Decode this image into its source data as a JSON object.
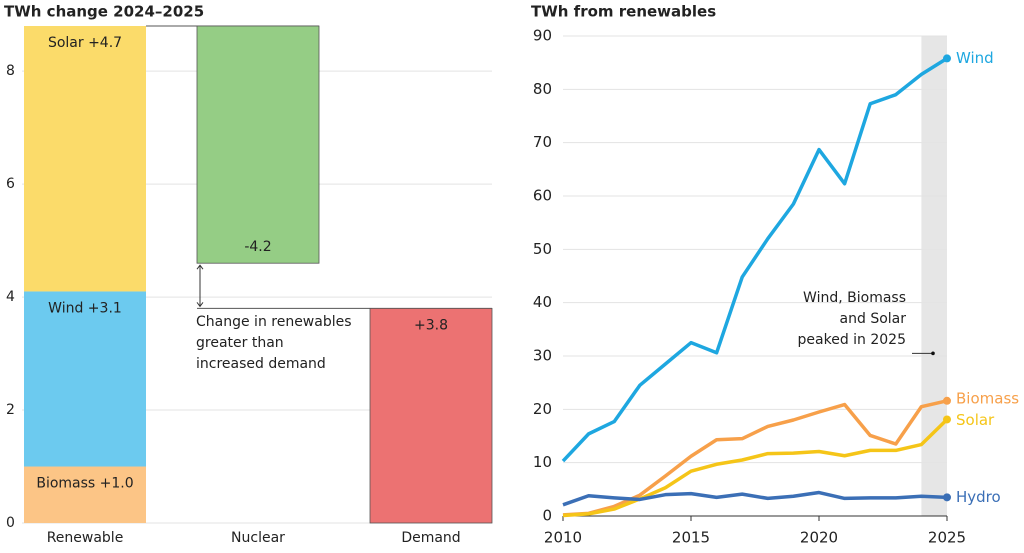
{
  "chart_data": [
    {
      "type": "waterfall",
      "title": "TWh change 2024–2025",
      "categories": [
        "Renewable",
        "Nuclear",
        "Demand"
      ],
      "ylim": [
        0,
        8.8
      ],
      "yticks": [
        0,
        2,
        4,
        6,
        8
      ],
      "grid": true,
      "segments": [
        {
          "label": "Biomass +1.0",
          "value": 1.0,
          "color": "#fcc586"
        },
        {
          "label": "Wind +3.1",
          "value": 3.1,
          "color": "#6ccaef"
        },
        {
          "label": "Solar +4.7",
          "value": 4.7,
          "color": "#fbdb6a"
        }
      ],
      "nuclear": {
        "value": -4.2,
        "value_label": "-4.2",
        "color": "#95cd85"
      },
      "demand": {
        "value": 3.8,
        "value_label": "+3.8",
        "color": "#ec7272"
      },
      "annotation": [
        "Change in renewables",
        "greater than",
        "increased demand"
      ]
    },
    {
      "type": "line",
      "title": "TWh from renewables",
      "x": [
        2010,
        2011,
        2012,
        2013,
        2014,
        2015,
        2016,
        2017,
        2018,
        2019,
        2020,
        2021,
        2022,
        2023,
        2024,
        2025
      ],
      "xlim": [
        2010,
        2025
      ],
      "xticks": [
        2010,
        2015,
        2020,
        2025
      ],
      "ylim": [
        0,
        90
      ],
      "yticks": [
        0,
        10,
        20,
        30,
        40,
        50,
        60,
        70,
        80,
        90
      ],
      "grid": true,
      "highlight": [
        2024,
        2025
      ],
      "series": [
        {
          "name": "Wind",
          "color": "#1ea7e0",
          "values": [
            10.3,
            15.4,
            17.7,
            24.5,
            28.5,
            32.5,
            30.6,
            44.8,
            52,
            58.5,
            68.7,
            62.3,
            77.3,
            79,
            82.8,
            85.8
          ]
        },
        {
          "name": "Biomass",
          "color": "#f7a04a",
          "values": [
            0.2,
            0.5,
            1.8,
            3.9,
            7.5,
            11.2,
            14.3,
            14.5,
            16.8,
            18.0,
            19.5,
            20.9,
            15.1,
            13.5,
            20.5,
            21.6
          ]
        },
        {
          "name": "Solar",
          "color": "#f5c518",
          "values": [
            0.1,
            0.4,
            1.3,
            3.2,
            5.3,
            8.4,
            9.7,
            10.5,
            11.7,
            11.8,
            12.1,
            11.3,
            12.3,
            12.3,
            13.4,
            18.1
          ]
        },
        {
          "name": "Hydro",
          "color": "#3b6fb6",
          "values": [
            2.1,
            3.8,
            3.4,
            3.1,
            4.0,
            4.2,
            3.5,
            4.1,
            3.3,
            3.7,
            4.4,
            3.3,
            3.4,
            3.4,
            3.7,
            3.5
          ]
        }
      ],
      "annotation": [
        "Wind, Biomass",
        "and Solar",
        "peaked in 2025"
      ]
    }
  ]
}
